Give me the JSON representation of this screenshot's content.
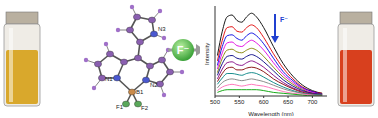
{
  "chart_data": {
    "type": "line",
    "x_label": "Wavelength (nm)",
    "y_label": "Intensity",
    "annotation": "F⁻",
    "x": [
      505,
      515,
      525,
      535,
      545,
      555,
      565,
      575,
      585,
      600,
      620,
      640,
      660,
      680,
      700,
      720
    ],
    "xlim": [
      500,
      730
    ],
    "xticks": [
      500,
      550,
      600,
      650,
      700
    ],
    "ylim": [
      0,
      100
    ],
    "tick_labels": "x",
    "grid": false,
    "series": [
      {
        "color": "#000000",
        "values": [
          45,
          72,
          88,
          90,
          84,
          82,
          88,
          92,
          88,
          76,
          55,
          36,
          22,
          12,
          6,
          3
        ]
      },
      {
        "color": "#e00000",
        "values": [
          39,
          62,
          76,
          77,
          72,
          71,
          76,
          79,
          76,
          65,
          47,
          31,
          19,
          10,
          5,
          3
        ]
      },
      {
        "color": "#0000e0",
        "values": [
          34,
          55,
          67,
          68,
          64,
          62,
          67,
          70,
          67,
          58,
          42,
          27,
          17,
          9,
          5,
          2
        ]
      },
      {
        "color": "#e000e0",
        "values": [
          30,
          48,
          59,
          60,
          56,
          55,
          59,
          62,
          59,
          51,
          37,
          24,
          15,
          8,
          4,
          2
        ]
      },
      {
        "color": "#808000",
        "values": [
          26,
          42,
          51,
          52,
          49,
          48,
          51,
          53,
          51,
          44,
          32,
          21,
          13,
          7,
          3,
          2
        ]
      },
      {
        "color": "#000080",
        "values": [
          23,
          36,
          44,
          45,
          42,
          41,
          44,
          46,
          44,
          38,
          28,
          18,
          11,
          6,
          3,
          2
        ]
      },
      {
        "color": "#800080",
        "values": [
          19,
          30,
          37,
          38,
          35,
          34,
          37,
          39,
          37,
          32,
          23,
          15,
          9,
          5,
          3,
          1
        ]
      },
      {
        "color": "#800000",
        "values": [
          16,
          25,
          31,
          32,
          29,
          29,
          31,
          32,
          31,
          27,
          19,
          13,
          8,
          4,
          2,
          1
        ]
      },
      {
        "color": "#008080",
        "values": [
          13,
          20,
          25,
          25,
          24,
          23,
          25,
          26,
          25,
          21,
          15,
          10,
          6,
          3,
          2,
          1
        ]
      },
      {
        "color": "#808080",
        "values": [
          9,
          15,
          18,
          19,
          18,
          17,
          18,
          19,
          18,
          16,
          12,
          8,
          5,
          3,
          1,
          1
        ]
      },
      {
        "color": "#ff69b4",
        "values": [
          6,
          10,
          12,
          13,
          12,
          11,
          12,
          13,
          12,
          11,
          8,
          5,
          3,
          2,
          1,
          0
        ]
      },
      {
        "color": "#00a000",
        "values": [
          4,
          6,
          7,
          7,
          7,
          7,
          7,
          7,
          7,
          6,
          4,
          3,
          2,
          1,
          0,
          0
        ]
      }
    ]
  },
  "figure": {
    "reagent": "F⁻",
    "atom_labels": {
      "N1": "N1",
      "N2": "N2",
      "N3": "N3",
      "B1": "B1",
      "F1": "F1",
      "F2": "F2"
    }
  }
}
